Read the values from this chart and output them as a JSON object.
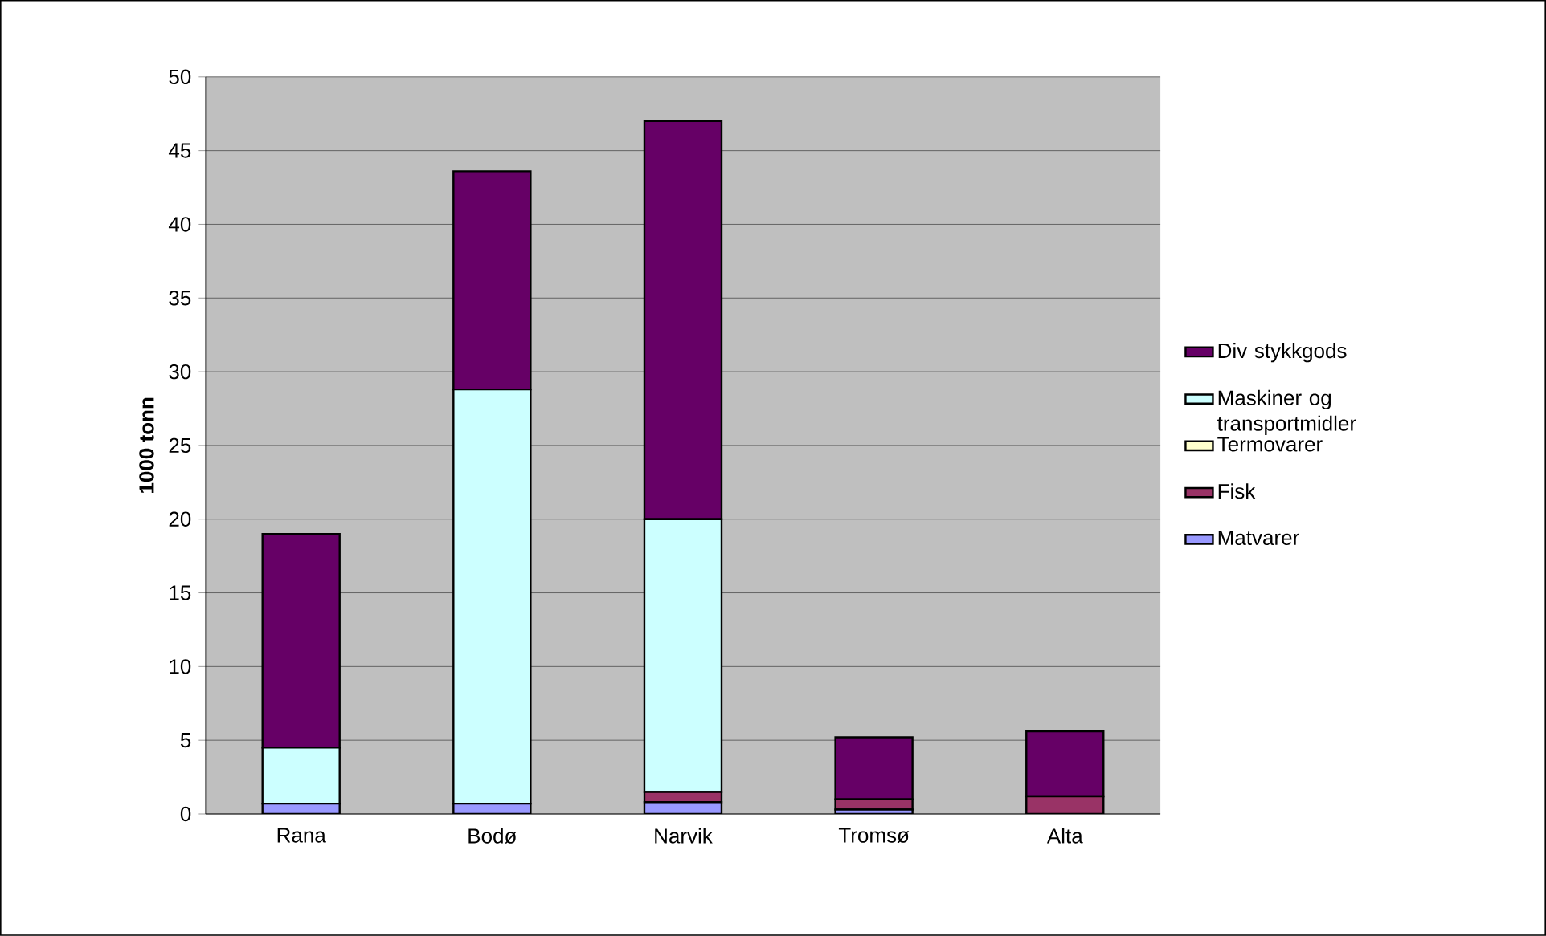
{
  "chart_data": {
    "type": "bar",
    "stacked": true,
    "ylabel": "1000 tonn",
    "categories": [
      "Rana",
      "Bodø",
      "Narvik",
      "Tromsø",
      "Alta"
    ],
    "series": [
      {
        "name": "Matvarer",
        "color": "#9999ff",
        "values": [
          0.7,
          0.7,
          0.8,
          0.3,
          0
        ]
      },
      {
        "name": "Fisk",
        "color": "#993366",
        "values": [
          0,
          0,
          0.7,
          0.7,
          1.2
        ]
      },
      {
        "name": "Termovarer",
        "color": "#ffffcc",
        "values": [
          null,
          null,
          null,
          null,
          null
        ]
      },
      {
        "name": "Maskiner og transportmidler",
        "color": "#ccffff",
        "values": [
          3.8,
          28.1,
          18.5,
          0,
          0
        ]
      },
      {
        "name": "Div stykkgods",
        "color": "#660066",
        "values": [
          14.5,
          14.8,
          27.0,
          4.2,
          4.4
        ]
      }
    ],
    "ylim": [
      0,
      50
    ],
    "yticks": [
      0,
      5,
      10,
      15,
      20,
      25,
      30,
      35,
      40,
      45,
      50
    ],
    "grid": "y",
    "legend": "right"
  }
}
